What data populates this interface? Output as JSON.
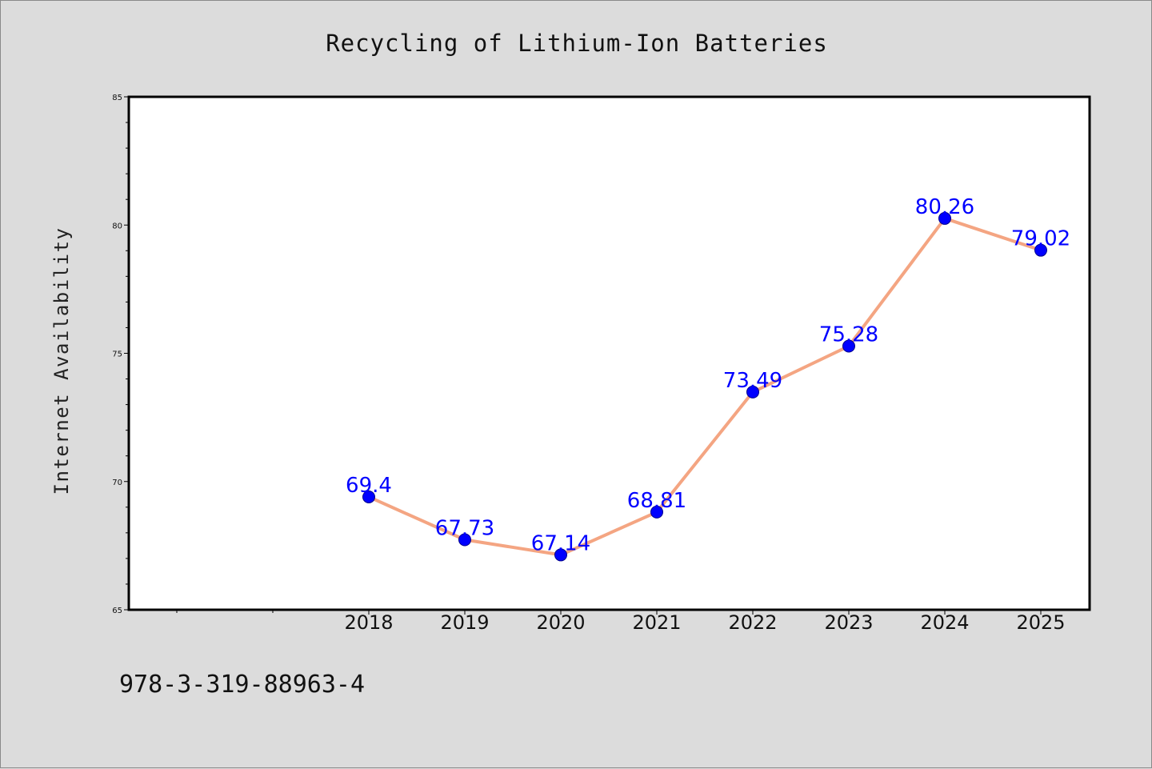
{
  "chart_data": {
    "type": "line",
    "title": "Recycling of Lithium-Ion Batteries",
    "xlabel": "",
    "ylabel": "Internet Availability",
    "categories": [
      "2018",
      "2019",
      "2020",
      "2021",
      "2022",
      "2023",
      "2024",
      "2025"
    ],
    "series": [
      {
        "values": [
          69.4,
          67.73,
          67.14,
          68.81,
          73.49,
          75.28,
          80.26,
          79.02
        ],
        "data_labels": [
          "69.4",
          "67.73",
          "67.14",
          "68.81",
          "73.49",
          "75.28",
          "80.26",
          "79.02"
        ]
      }
    ],
    "ylim": [
      65,
      85
    ],
    "yticks": [
      "65",
      "70",
      "75",
      "80",
      "85"
    ],
    "grid": false,
    "legend": "none"
  },
  "footnote": "978-3-319-88963-4",
  "colors": {
    "line": "#f4a582",
    "marker": "#0000ff",
    "data_label": "#0000ff",
    "plot_background": "#ffffff",
    "figure_background": "#dcdcdc"
  }
}
